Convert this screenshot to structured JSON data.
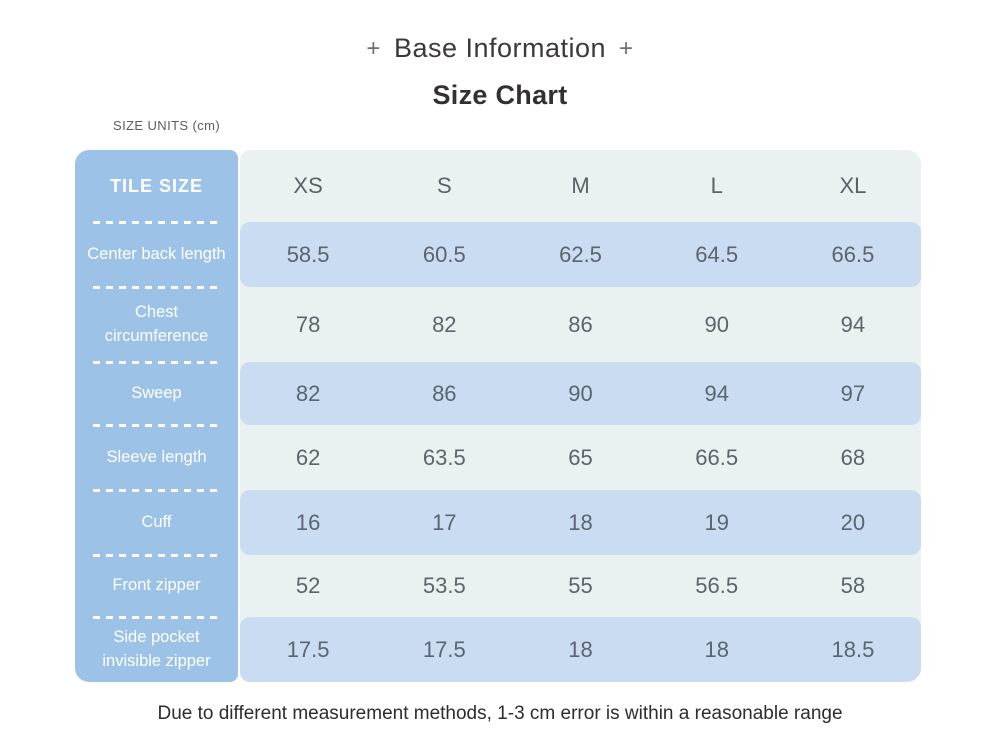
{
  "header": {
    "plus_left": "+",
    "title": "Base Information",
    "plus_right": "+",
    "subtitle": "Size Chart",
    "size_units": "SIZE UNITS (cm)"
  },
  "chart_data": {
    "type": "table",
    "title": "Size Chart",
    "corner_label": "TILE SIZE",
    "columns": [
      "TILE SIZE",
      "XS",
      "S",
      "M",
      "L",
      "XL"
    ],
    "rows": [
      {
        "label": "Center back length",
        "values": [
          "58.5",
          "60.5",
          "62.5",
          "64.5",
          "66.5"
        ]
      },
      {
        "label": "Chest circumference",
        "values": [
          "78",
          "82",
          "86",
          "90",
          "94"
        ]
      },
      {
        "label": "Sweep",
        "values": [
          "82",
          "86",
          "90",
          "94",
          "97"
        ]
      },
      {
        "label": "Sleeve length",
        "values": [
          "62",
          "63.5",
          "65",
          "66.5",
          "68"
        ]
      },
      {
        "label": "Cuff",
        "values": [
          "16",
          "17",
          "18",
          "19",
          "20"
        ]
      },
      {
        "label": "Front zipper",
        "values": [
          "52",
          "53.5",
          "55",
          "56.5",
          "58"
        ]
      },
      {
        "label": "Side pocket invisible zipper",
        "values": [
          "17.5",
          "17.5",
          "18",
          "18",
          "18.5"
        ]
      }
    ]
  },
  "footer": {
    "note": "Due to different measurement methods, 1-3 cm error is within a reasonable range"
  },
  "colors": {
    "label_column_blue": "#9cc3e7",
    "row_blue": "#c9dcf2",
    "row_mint": "#e9f2f1",
    "value_text": "#5c646d",
    "title_text": "#3d383a"
  }
}
